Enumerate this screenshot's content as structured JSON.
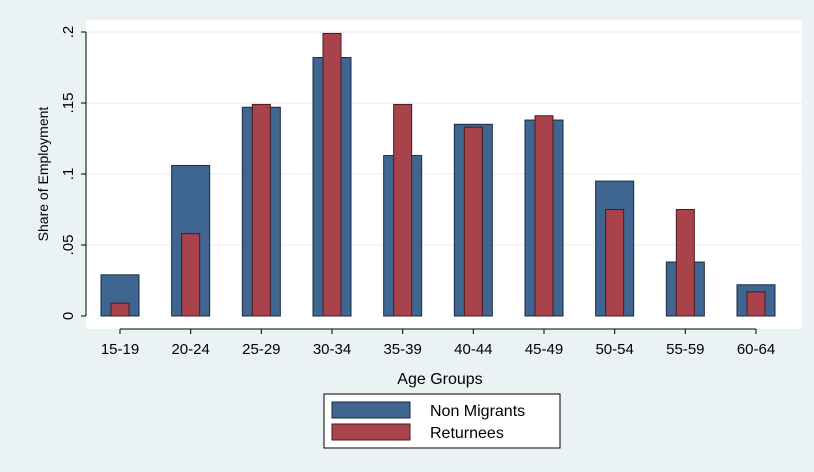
{
  "chart_data": {
    "type": "bar",
    "title": "",
    "xlabel": "Age Groups",
    "ylabel": "Share of Employment",
    "ylim": [
      0,
      0.2
    ],
    "yticks": [
      0,
      0.05,
      0.1,
      0.15,
      0.2
    ],
    "ytick_labels": [
      "0",
      ".05",
      ".1",
      ".15",
      ".2"
    ],
    "categories": [
      "15-19",
      "20-24",
      "25-29",
      "30-34",
      "35-39",
      "40-44",
      "45-49",
      "50-54",
      "55-59",
      "60-64"
    ],
    "series": [
      {
        "name": "Non Migrants",
        "color": "#3f6690",
        "values": [
          0.029,
          0.106,
          0.147,
          0.182,
          0.113,
          0.135,
          0.138,
          0.095,
          0.038,
          0.022
        ]
      },
      {
        "name": "Returnees",
        "color": "#a9434b",
        "values": [
          0.009,
          0.058,
          0.149,
          0.199,
          0.149,
          0.133,
          0.141,
          0.075,
          0.075,
          0.017
        ]
      }
    ],
    "grid": true,
    "legend_position": "bottom-center"
  }
}
